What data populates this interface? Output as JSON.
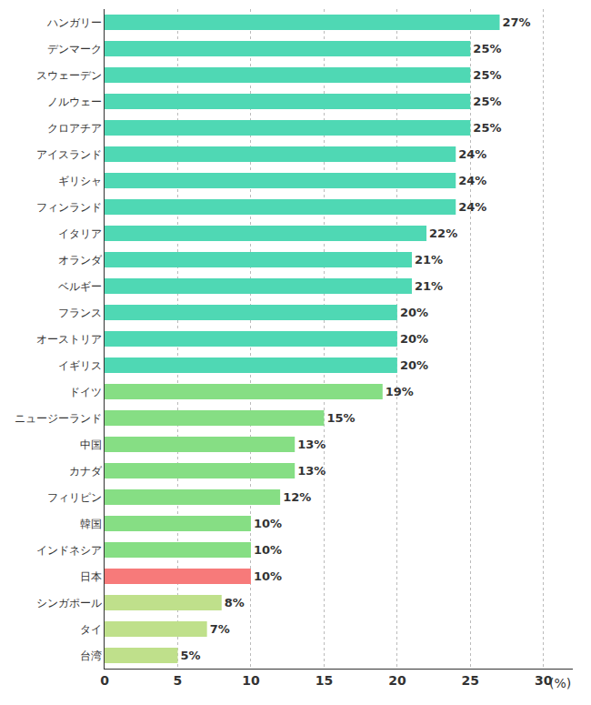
{
  "chart_data": {
    "type": "bar",
    "orientation": "horizontal",
    "x_label": "(%)",
    "categories": [
      "ハンガリー",
      "デンマーク",
      "スウェーデン",
      "ノルウェー",
      "クロアチア",
      "アイスランド",
      "ギリシャ",
      "フィンランド",
      "イタリア",
      "オランダ",
      "ベルギー",
      "フランス",
      "オーストリア",
      "イギリス",
      "ドイツ",
      "ニュージーランド",
      "中国",
      "カナダ",
      "フィリピン",
      "韓国",
      "インドネシア",
      "日本",
      "シンガポール",
      "タイ",
      "台湾"
    ],
    "values": [
      27,
      25,
      25,
      25,
      25,
      24,
      24,
      24,
      22,
      21,
      21,
      20,
      20,
      20,
      19,
      15,
      13,
      13,
      12,
      10,
      10,
      10,
      8,
      7,
      5
    ],
    "value_labels": [
      "27%",
      "25%",
      "25%",
      "25%",
      "25%",
      "24%",
      "24%",
      "24%",
      "22%",
      "21%",
      "21%",
      "20%",
      "20%",
      "20%",
      "19%",
      "15%",
      "13%",
      "13%",
      "12%",
      "10%",
      "10%",
      "10%",
      "8%",
      "7%",
      "5%"
    ],
    "colors": [
      "#4fd8b4",
      "#4fd8b4",
      "#4fd8b4",
      "#4fd8b4",
      "#4fd8b4",
      "#4fd8b4",
      "#4fd8b4",
      "#4fd8b4",
      "#4fd8b4",
      "#4fd8b4",
      "#4fd8b4",
      "#4fd8b4",
      "#4fd8b4",
      "#4fd8b4",
      "#86de84",
      "#86de84",
      "#86de84",
      "#86de84",
      "#86de84",
      "#86de84",
      "#86de84",
      "#f77a7a",
      "#bfe08b",
      "#bfe08b",
      "#bfe08b"
    ],
    "data_labels": true,
    "xlim": [
      0,
      32
    ],
    "xticks": [
      0,
      5,
      10,
      15,
      20,
      25,
      30
    ],
    "grid": true
  }
}
